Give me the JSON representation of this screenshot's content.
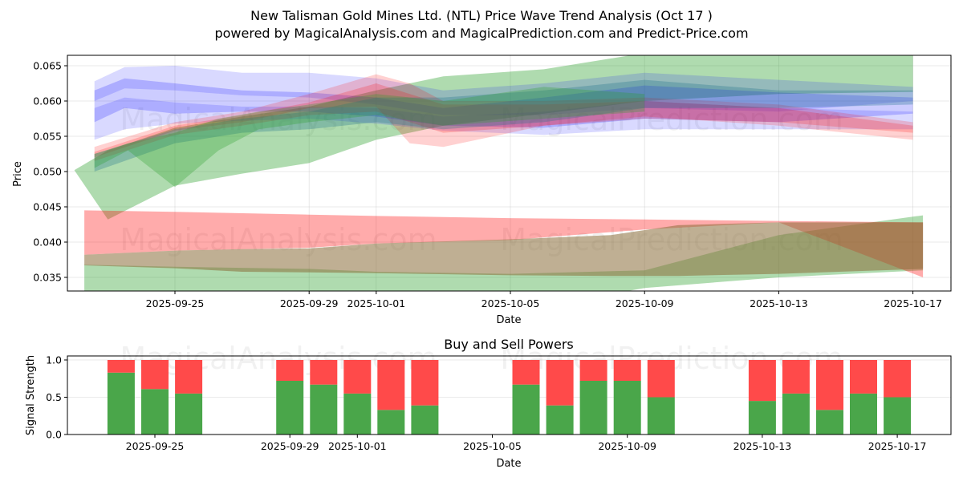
{
  "chart_data": [
    {
      "type": "area",
      "title": "New Talisman Gold Mines Ltd. (NTL) Price Wave Trend Analysis (Oct 17 )",
      "subtitle": "powered by MagicalAnalysis.com and MagicalPrediction.com and Predict-Price.com",
      "xlabel": "Date",
      "ylabel": "Price",
      "ylim": [
        0.033,
        0.0665
      ],
      "xlim": [
        "2025-09-21.8",
        "2025-10-18.1"
      ],
      "yticks": [
        "0.035",
        "0.040",
        "0.045",
        "0.050",
        "0.055",
        "0.060",
        "0.065"
      ],
      "xticks": [
        "2025-09-25",
        "2025-09-29",
        "2025-10-01",
        "2025-10-05",
        "2025-10-09",
        "2025-10-13",
        "2025-10-17"
      ],
      "grid": true,
      "watermarks": [
        "MagicalAnalysis.com",
        "MagicalPrediction.com"
      ],
      "series": [
        {
          "name": "green-wide-upper",
          "color": "#2ca02c",
          "x": [
            "2025-09-22",
            "2025-09-23",
            "2025-09-25",
            "2025-09-27",
            "2025-09-29",
            "2025-10-01",
            "2025-10-03",
            "2025-10-06",
            "2025-10-09",
            "2025-10-13",
            "2025-10-17"
          ],
          "upper": [
            0.0502,
            0.053,
            0.0562,
            0.0578,
            0.0592,
            0.0615,
            0.0635,
            0.0645,
            0.0668,
            0.0675,
            0.068
          ],
          "lower": [
            0.0502,
            0.0432,
            0.048,
            0.0497,
            0.0512,
            0.0545,
            0.0565,
            0.0582,
            0.06,
            0.061,
            0.0613
          ]
        },
        {
          "name": "green-lower",
          "color": "#2ca02c",
          "x": [
            "2025-09-22.3",
            "2025-09-25",
            "2025-09-29",
            "2025-10-01",
            "2025-10-05",
            "2025-10-09",
            "2025-10-13",
            "2025-10-17.3"
          ],
          "upper": [
            0.0368,
            0.0365,
            0.0362,
            0.0358,
            0.0355,
            0.036,
            0.041,
            0.0438
          ],
          "lower": [
            0.03,
            0.03,
            0.03,
            0.03,
            0.03,
            0.0335,
            0.035,
            0.036
          ]
        },
        {
          "name": "red-lower",
          "color": "#ff0000",
          "x": [
            "2025-09-22.3",
            "2025-09-25",
            "2025-09-29",
            "2025-10-01",
            "2025-10-05",
            "2025-10-09",
            "2025-10-13",
            "2025-10-17.3"
          ],
          "upper": [
            0.0445,
            0.0443,
            0.0439,
            0.0437,
            0.0434,
            0.0432,
            0.043,
            0.0428
          ],
          "lower": [
            0.0382,
            0.0388,
            0.0392,
            0.0398,
            0.0403,
            0.0418,
            0.0428,
            0.035
          ]
        },
        {
          "name": "brown-overlap",
          "color": "#8b6d3a",
          "x": [
            "2025-09-22.3",
            "2025-09-25",
            "2025-09-27",
            "2025-09-29",
            "2025-10-01",
            "2025-10-05",
            "2025-10-08",
            "2025-10-10",
            "2025-10-13",
            "2025-10-17.3"
          ],
          "upper": [
            0.0382,
            0.0388,
            0.039,
            0.0391,
            0.0398,
            0.0404,
            0.041,
            0.0424,
            0.0428,
            0.0428
          ],
          "lower": [
            0.0367,
            0.0363,
            0.0358,
            0.0357,
            0.0356,
            0.0353,
            0.0352,
            0.0352,
            0.0355,
            0.0362
          ]
        },
        {
          "name": "blue-band-1",
          "color": "#0000ff",
          "x": [
            "2025-09-22.6",
            "2025-09-23.5",
            "2025-09-25",
            "2025-09-27",
            "2025-09-29",
            "2025-10-01",
            "2025-10-03",
            "2025-10-06",
            "2025-10-09",
            "2025-10-13",
            "2025-10-17"
          ],
          "upper": [
            0.0628,
            0.0648,
            0.065,
            0.064,
            0.064,
            0.0632,
            0.0615,
            0.0625,
            0.064,
            0.063,
            0.062
          ],
          "lower": [
            0.06,
            0.0618,
            0.0615,
            0.0608,
            0.0605,
            0.0595,
            0.058,
            0.058,
            0.059,
            0.0585,
            0.06
          ]
        },
        {
          "name": "blue-band-2",
          "color": "#0000ff",
          "x": [
            "2025-09-22.6",
            "2025-09-23.5",
            "2025-09-25",
            "2025-09-27",
            "2025-09-29",
            "2025-10-01",
            "2025-10-03",
            "2025-10-06",
            "2025-10-09",
            "2025-10-13",
            "2025-10-17"
          ],
          "upper": [
            0.0615,
            0.0632,
            0.0625,
            0.0615,
            0.0612,
            0.0605,
            0.059,
            0.0605,
            0.0622,
            0.0612,
            0.0605
          ],
          "lower": [
            0.057,
            0.059,
            0.0582,
            0.0585,
            0.0585,
            0.0578,
            0.0565,
            0.0562,
            0.0575,
            0.057,
            0.0582
          ]
        },
        {
          "name": "blue-band-3",
          "color": "#0000ff",
          "x": [
            "2025-09-22.6",
            "2025-09-23.5",
            "2025-09-25",
            "2025-09-27",
            "2025-09-29",
            "2025-10-01",
            "2025-10-03",
            "2025-10-06",
            "2025-10-09",
            "2025-10-13",
            "2025-10-17"
          ],
          "upper": [
            0.059,
            0.0605,
            0.0598,
            0.0592,
            0.0592,
            0.059,
            0.0578,
            0.0585,
            0.06,
            0.059,
            0.0585
          ],
          "lower": [
            0.0545,
            0.056,
            0.0568,
            0.0572,
            0.0575,
            0.0568,
            0.0558,
            0.0552,
            0.056,
            0.056,
            0.056
          ]
        },
        {
          "name": "pink-band-1",
          "color": "#ff0000",
          "x": [
            "2025-09-22.6",
            "2025-09-25",
            "2025-09-27",
            "2025-09-29",
            "2025-10-01",
            "2025-10-02",
            "2025-10-03",
            "2025-10-06",
            "2025-10-09",
            "2025-10-13",
            "2025-10-17"
          ],
          "upper": [
            0.0535,
            0.057,
            0.0585,
            0.061,
            0.0638,
            0.0625,
            0.06,
            0.06,
            0.0605,
            0.0595,
            0.057
          ],
          "lower": [
            0.052,
            0.0558,
            0.057,
            0.059,
            0.0592,
            0.054,
            0.0535,
            0.0565,
            0.0578,
            0.0565,
            0.0545
          ]
        },
        {
          "name": "pink-band-2",
          "color": "#ff0000",
          "x": [
            "2025-09-22.6",
            "2025-09-25",
            "2025-09-27",
            "2025-09-29",
            "2025-10-01",
            "2025-10-03",
            "2025-10-06",
            "2025-10-09",
            "2025-10-13",
            "2025-10-17"
          ],
          "upper": [
            0.0528,
            0.0565,
            0.058,
            0.0598,
            0.0625,
            0.0595,
            0.0595,
            0.06,
            0.059,
            0.0565
          ],
          "lower": [
            0.0515,
            0.0552,
            0.0565,
            0.058,
            0.0585,
            0.0555,
            0.0565,
            0.0575,
            0.057,
            0.0555
          ]
        },
        {
          "name": "teal-band",
          "color": "#1f6f8b",
          "x": [
            "2025-09-22.6",
            "2025-09-25",
            "2025-09-27",
            "2025-09-29",
            "2025-10-01",
            "2025-10-03",
            "2025-10-06",
            "2025-10-09",
            "2025-10-13",
            "2025-10-17"
          ],
          "upper": [
            0.0525,
            0.056,
            0.0575,
            0.0585,
            0.0605,
            0.0605,
            0.0615,
            0.063,
            0.0615,
            0.0615
          ],
          "lower": [
            0.05,
            0.054,
            0.0555,
            0.056,
            0.057,
            0.056,
            0.057,
            0.059,
            0.059,
            0.0595
          ]
        },
        {
          "name": "green-v-band",
          "color": "#2ca02c",
          "x": [
            "2025-09-22.6",
            "2025-09-23.6",
            "2025-09-25",
            "2025-09-26.3",
            "2025-09-27.5",
            "2025-09-29",
            "2025-10-01",
            "2025-10-03",
            "2025-10-06",
            "2025-10-09"
          ],
          "upper": [
            0.0525,
            0.054,
            0.0555,
            0.0575,
            0.0585,
            0.0595,
            0.061,
            0.06,
            0.062,
            0.061
          ],
          "lower": [
            0.0505,
            0.053,
            0.0478,
            0.053,
            0.056,
            0.057,
            0.058,
            0.0565,
            0.0575,
            0.0585
          ]
        }
      ]
    },
    {
      "type": "bar",
      "title": "Buy and Sell Powers",
      "xlabel": "Date",
      "ylabel": "Signal Strength",
      "ylim": [
        0,
        1.05
      ],
      "yticks": [
        "0.0",
        "0.5",
        "1.0"
      ],
      "xticks": [
        "2025-09-25",
        "2025-09-29",
        "2025-10-01",
        "2025-10-05",
        "2025-10-09",
        "2025-10-13",
        "2025-10-17"
      ],
      "grid": true,
      "stacked": true,
      "categories": [
        "2025-09-24",
        "2025-09-25",
        "2025-09-26",
        "2025-09-29",
        "2025-09-30",
        "2025-10-01",
        "2025-10-02",
        "2025-10-03",
        "2025-10-06",
        "2025-10-07",
        "2025-10-08",
        "2025-10-09",
        "2025-10-10",
        "2025-10-13",
        "2025-10-14",
        "2025-10-15",
        "2025-10-16",
        "2025-10-17"
      ],
      "series": [
        {
          "name": "Buy",
          "color": "#4aa64a",
          "values": [
            0.83,
            0.61,
            0.55,
            0.72,
            0.67,
            0.55,
            0.33,
            0.39,
            0.67,
            0.39,
            0.72,
            0.72,
            0.5,
            0.45,
            0.55,
            0.33,
            0.55,
            0.5
          ]
        },
        {
          "name": "Sell",
          "color": "#ff4a4a",
          "values": [
            0.17,
            0.39,
            0.45,
            0.28,
            0.33,
            0.45,
            0.67,
            0.61,
            0.33,
            0.61,
            0.28,
            0.28,
            0.5,
            0.55,
            0.45,
            0.67,
            0.45,
            0.5
          ]
        }
      ]
    }
  ]
}
